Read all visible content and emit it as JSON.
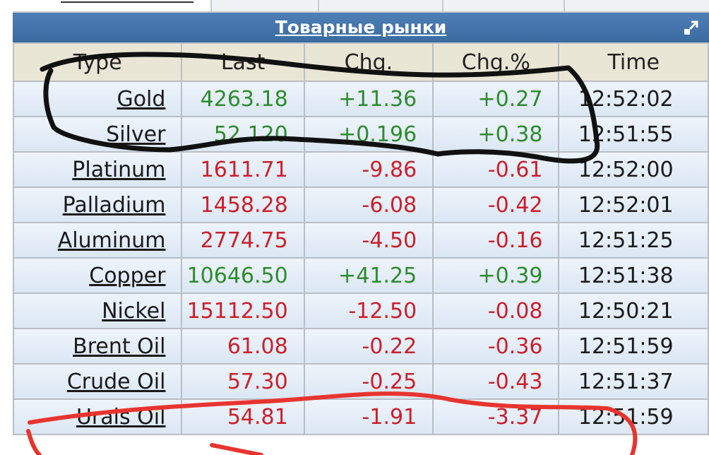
{
  "widget": {
    "title": "Товарные рынки",
    "expand_icon": "external-link-icon"
  },
  "columns": [
    "Type",
    "Last",
    "Chg.",
    "Chg.%",
    "Time"
  ],
  "rows": [
    {
      "type": "Gold",
      "last": "4263.18",
      "chg": "+11.36",
      "chg_pct": "+0.27",
      "time": "12:52:02",
      "direction": "up"
    },
    {
      "type": "Silver",
      "last": "52.120",
      "chg": "+0.196",
      "chg_pct": "+0.38",
      "time": "12:51:55",
      "direction": "up"
    },
    {
      "type": "Platinum",
      "last": "1611.71",
      "chg": "-9.86",
      "chg_pct": "-0.61",
      "time": "12:52:00",
      "direction": "down"
    },
    {
      "type": "Palladium",
      "last": "1458.28",
      "chg": "-6.08",
      "chg_pct": "-0.42",
      "time": "12:52:01",
      "direction": "down"
    },
    {
      "type": "Aluminum",
      "last": "2774.75",
      "chg": "-4.50",
      "chg_pct": "-0.16",
      "time": "12:51:25",
      "direction": "down"
    },
    {
      "type": "Copper",
      "last": "10646.50",
      "chg": "+41.25",
      "chg_pct": "+0.39",
      "time": "12:51:38",
      "direction": "up"
    },
    {
      "type": "Nickel",
      "last": "15112.50",
      "chg": "-12.50",
      "chg_pct": "-0.08",
      "time": "12:50:21",
      "direction": "down"
    },
    {
      "type": "Brent Oil",
      "last": "61.08",
      "chg": "-0.22",
      "chg_pct": "-0.36",
      "time": "12:51:59",
      "direction": "down"
    },
    {
      "type": "Crude Oil",
      "last": "57.30",
      "chg": "-0.25",
      "chg_pct": "-0.43",
      "time": "12:51:37",
      "direction": "down"
    },
    {
      "type": "Urals Oil",
      "last": "54.81",
      "chg": "-1.91",
      "chg_pct": "-3.37",
      "time": "12:51:59",
      "direction": "down"
    }
  ],
  "colors": {
    "up": "#2e8b2e",
    "down": "#cc1f2a",
    "header_bg": "#3f6fa5",
    "column_header_bg": "#eae6d6",
    "annotation_black": "#111111",
    "annotation_red": "#e8342f"
  }
}
